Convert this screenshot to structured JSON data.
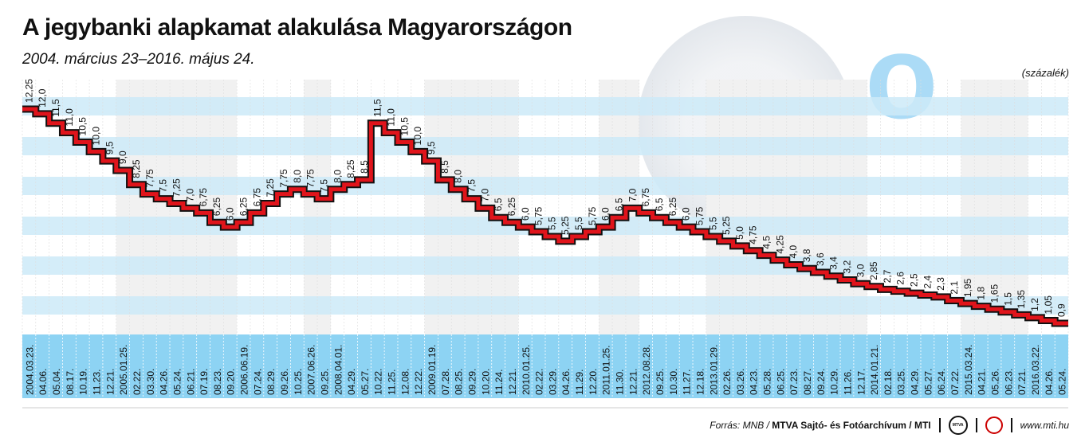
{
  "header": {
    "title": "A jegybanki alapkamat alakulása Magyarországon",
    "subtitle": "2004. március 23–2016. május 24.",
    "unit": "(százalék)"
  },
  "footer": {
    "source_prefix": "Forrás: MNB /",
    "source_bold": "MTVA Sajtó- és Fotóarchívum / MTI",
    "logo1": "MTVA",
    "url": "www.mti.hu"
  },
  "colors": {
    "line": "#e0141b",
    "outline": "#111111",
    "band": "#cdeaf8",
    "date_strip": "#8dd3f3",
    "gray_col": "#f1f1f1"
  },
  "chart_data": {
    "type": "line",
    "style": "step",
    "title": "A jegybanki alapkamat alakulása Magyarországon",
    "ylabel": "(százalék)",
    "ylim": [
      0.9,
      12.25
    ],
    "x": [
      "2004.03.23.",
      "04.06.",
      "05.04.",
      "08.17.",
      "10.19.",
      "11.23.",
      "12.21.",
      "2005.01.25.",
      "02.22.",
      "03.30.",
      "04.26.",
      "05.24.",
      "06.21.",
      "07.19.",
      "08.23.",
      "09.20.",
      "2006.06.19.",
      "07.24.",
      "08.29.",
      "09.26.",
      "10.25.",
      "2007.06.26.",
      "09.25.",
      "2008.04.01.",
      "04.29.",
      "05.27.",
      "10.22.",
      "11.25.",
      "12.08.",
      "12.22.",
      "2009.01.19.",
      "07.28.",
      "08.25.",
      "09.29.",
      "10.20.",
      "11.24.",
      "12.21.",
      "2010.01.25.",
      "02.22.",
      "03.29.",
      "04.26.",
      "11.29.",
      "12.20.",
      "2011.01.25.",
      "11.30.",
      "12.21.",
      "2012.08.28.",
      "09.25.",
      "10.30.",
      "11.27.",
      "12.18.",
      "2013.01.29.",
      "02.26.",
      "03.26.",
      "04.23.",
      "05.28.",
      "06.25.",
      "07.23.",
      "08.27.",
      "09.24.",
      "10.29.",
      "11.26.",
      "12.17.",
      "2014.01.21.",
      "02.18.",
      "03.25.",
      "04.29.",
      "05.27.",
      "06.24.",
      "07.22.",
      "2015.03.24.",
      "04.21.",
      "05.26.",
      "06.23.",
      "07.21.",
      "2016.03.22.",
      "04.26.",
      "05.24."
    ],
    "values": [
      12.25,
      12.0,
      11.5,
      11.0,
      10.5,
      10.0,
      9.5,
      9.0,
      8.25,
      7.75,
      7.5,
      7.25,
      7.0,
      6.75,
      6.25,
      6.0,
      6.25,
      6.75,
      7.25,
      7.75,
      8.0,
      7.75,
      7.5,
      8.0,
      8.25,
      8.5,
      11.5,
      11.0,
      10.5,
      10.0,
      9.5,
      8.5,
      8.0,
      7.5,
      7.0,
      6.5,
      6.25,
      6.0,
      5.75,
      5.5,
      5.25,
      5.5,
      5.75,
      6.0,
      6.5,
      7.0,
      6.75,
      6.5,
      6.25,
      6.0,
      5.75,
      5.5,
      5.25,
      5.0,
      4.75,
      4.5,
      4.25,
      4.0,
      3.8,
      3.6,
      3.4,
      3.2,
      3.0,
      2.85,
      2.7,
      2.6,
      2.5,
      2.4,
      2.3,
      2.1,
      1.95,
      1.8,
      1.65,
      1.5,
      1.35,
      1.2,
      1.05,
      0.9
    ],
    "labels": [
      "12,25",
      "12,0",
      "11,5",
      "11,0",
      "10,5",
      "10,0",
      "9,5",
      "9,0",
      "8,25",
      "7,75",
      "7,5",
      "7,25",
      "7,0",
      "6,75",
      "6,25",
      "6,0",
      "6,25",
      "6,75",
      "7,25",
      "7,75",
      "8,0",
      "7,75",
      "7,5",
      "8,0",
      "8,25",
      "8,5",
      "11,5",
      "11,0",
      "10,5",
      "10,0",
      "9,5",
      "8,5",
      "8,0",
      "7,5",
      "7,0",
      "6,5",
      "6,25",
      "6,0",
      "5,75",
      "5,5",
      "5,25",
      "5,5",
      "5,75",
      "6,0",
      "6,5",
      "7,0",
      "6,75",
      "6,5",
      "6,25",
      "6,0",
      "5,75",
      "5,5",
      "5,25",
      "5,0",
      "4,75",
      "4,5",
      "4,25",
      "4,0",
      "3,8",
      "3,6",
      "3,4",
      "3,2",
      "3,0",
      "2,85",
      "2,7",
      "2,6",
      "2,5",
      "2,4",
      "2,3",
      "2,1",
      "1,95",
      "1,8",
      "1,65",
      "1,5",
      "1,35",
      "1,2",
      "1,05",
      "0,9"
    ],
    "grid": true,
    "legend": "none"
  }
}
